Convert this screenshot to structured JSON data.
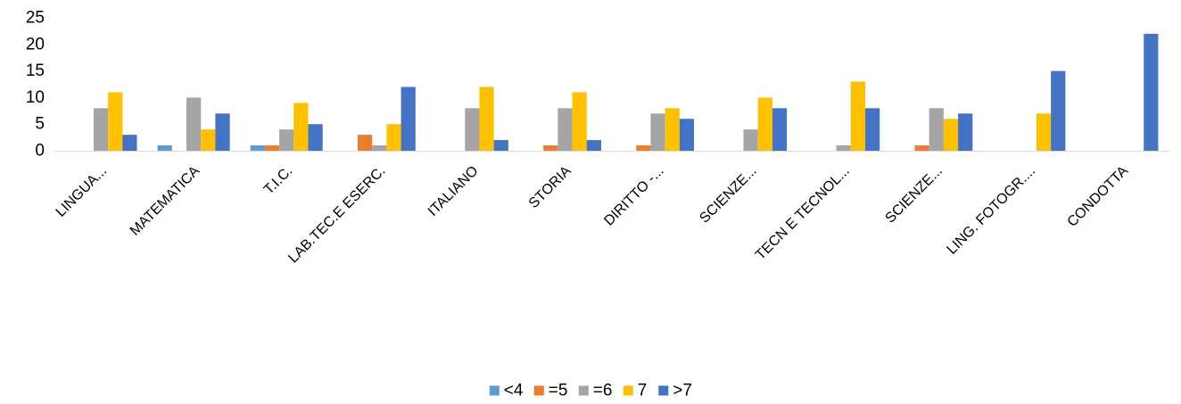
{
  "chart_data": {
    "type": "bar",
    "categories": [
      "LINGUA...",
      "MATEMATICA",
      "T.I.C.",
      "LAB.TEC.E ESERC.",
      "ITALIANO",
      "STORIA",
      "DIRITTO -...",
      "SCIENZE...",
      "TECN E TECNOL...",
      "SCIENZE...",
      "LING. FOTOGR....",
      "CONDOTTA"
    ],
    "series": [
      {
        "name": "<4",
        "color": "#5B9BD5",
        "values": [
          0,
          1,
          1,
          0,
          0,
          0,
          0,
          0,
          0,
          0,
          0,
          0
        ]
      },
      {
        "name": "=5",
        "color": "#ED7D31",
        "values": [
          0,
          0,
          1,
          3,
          0,
          1,
          1,
          0,
          0,
          1,
          0,
          0
        ]
      },
      {
        "name": "=6",
        "color": "#A5A5A5",
        "values": [
          8,
          10,
          4,
          1,
          8,
          8,
          7,
          4,
          1,
          8,
          0,
          0
        ]
      },
      {
        "name": "7",
        "color": "#FFC000",
        "values": [
          11,
          4,
          9,
          5,
          12,
          11,
          8,
          10,
          13,
          6,
          7,
          0
        ]
      },
      {
        "name": ">7",
        "color": "#4472C4",
        "values": [
          3,
          7,
          5,
          12,
          2,
          2,
          6,
          8,
          8,
          7,
          15,
          22
        ]
      }
    ],
    "ylim": [
      0,
      25
    ],
    "yticks": [
      0,
      5,
      10,
      15,
      20,
      25
    ],
    "grid": false,
    "legend_position": "bottom",
    "title": "",
    "xlabel": "",
    "ylabel": ""
  }
}
